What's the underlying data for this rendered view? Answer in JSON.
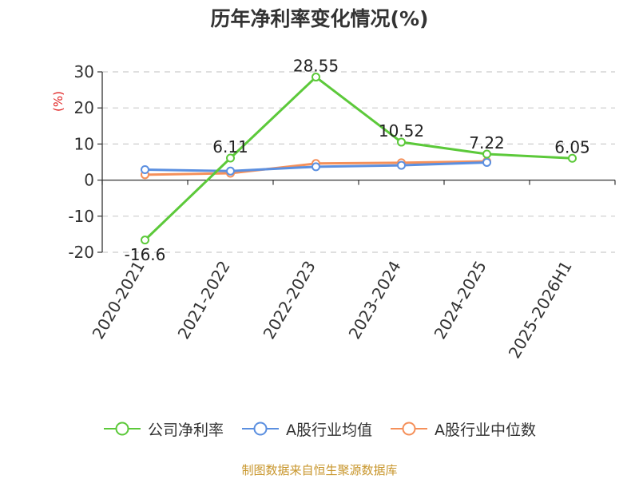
{
  "chart_data": {
    "type": "line",
    "title": "历年净利率变化情况(%)",
    "ylabel": "(%)",
    "categories": [
      "2020-2021",
      "2021-2022",
      "2022-2023",
      "2023-2024",
      "2024-2025",
      "2025-2026H1"
    ],
    "ylim": [
      -20,
      30
    ],
    "yticks": [
      -20,
      -10,
      0,
      10,
      20,
      30
    ],
    "grid": true,
    "legend_position": "bottom",
    "series": [
      {
        "name": "公司净利率",
        "color": "#5cc93a",
        "values": [
          -16.6,
          6.11,
          28.55,
          10.52,
          7.22,
          6.05
        ],
        "labels": [
          "-16.6",
          "6.11",
          "28.55",
          "10.52",
          "7.22",
          "6.05"
        ]
      },
      {
        "name": "A股行业均值",
        "color": "#5b8fe0",
        "values": [
          2.9,
          2.5,
          3.7,
          4.1,
          4.9,
          null
        ]
      },
      {
        "name": "A股行业中位数",
        "color": "#f5905a",
        "values": [
          1.5,
          1.9,
          4.6,
          4.8,
          5.2,
          null
        ]
      }
    ]
  },
  "source": "制图数据来自恒生聚源数据库"
}
